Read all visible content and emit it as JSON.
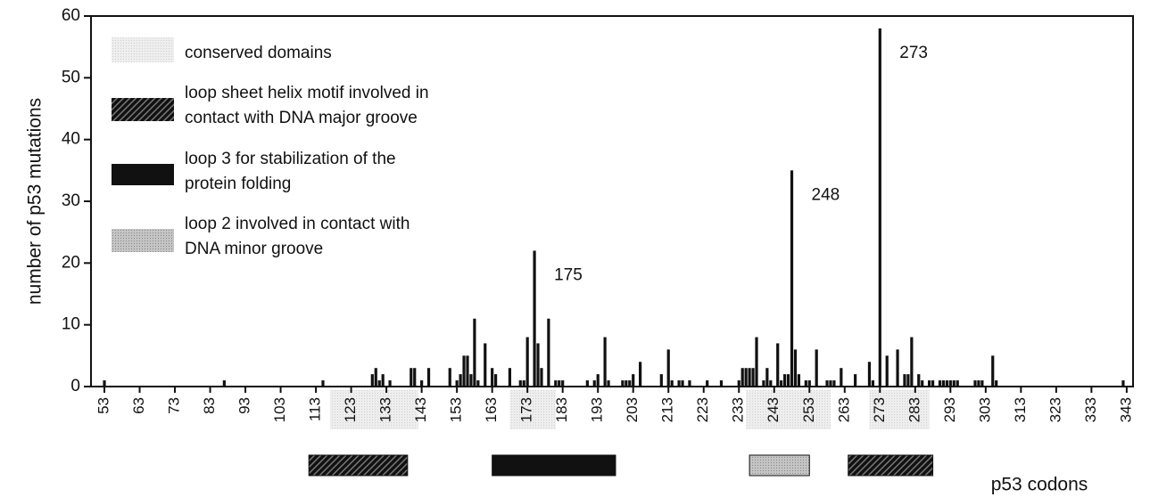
{
  "chart_data": {
    "type": "bar",
    "ylabel": "number of p53 mutations",
    "xlabel": "p53 codons",
    "color": "#111111",
    "x": [
      53,
      87,
      115,
      129,
      130,
      131,
      132,
      134,
      140,
      141,
      143,
      145,
      151,
      153,
      154,
      155,
      156,
      157,
      158,
      159,
      161,
      163,
      164,
      168,
      171,
      172,
      173,
      175,
      176,
      177,
      179,
      181,
      182,
      183,
      190,
      192,
      193,
      195,
      196,
      200,
      201,
      202,
      203,
      205,
      211,
      213,
      214,
      216,
      217,
      219,
      224,
      228,
      233,
      234,
      235,
      236,
      237,
      238,
      240,
      241,
      242,
      244,
      245,
      246,
      247,
      248,
      249,
      250,
      252,
      253,
      255,
      258,
      259,
      260,
      262,
      266,
      270,
      271,
      273,
      275,
      278,
      280,
      281,
      282,
      284,
      285,
      287,
      288,
      290,
      291,
      292,
      293,
      294,
      295,
      300,
      301,
      302,
      305,
      306,
      342
    ],
    "values": [
      1,
      1,
      1,
      2,
      3,
      1,
      2,
      1,
      3,
      3,
      1,
      3,
      3,
      1,
      2,
      5,
      5,
      2,
      11,
      1,
      7,
      3,
      2,
      3,
      1,
      1,
      8,
      22,
      7,
      3,
      11,
      1,
      1,
      1,
      1,
      1,
      2,
      8,
      1,
      1,
      1,
      1,
      2,
      4,
      2,
      6,
      1,
      1,
      1,
      1,
      1,
      1,
      1,
      3,
      3,
      3,
      3,
      8,
      1,
      3,
      1,
      7,
      1,
      2,
      2,
      35,
      6,
      2,
      1,
      1,
      6,
      1,
      1,
      1,
      3,
      2,
      4,
      1,
      58,
      5,
      6,
      2,
      2,
      8,
      2,
      1,
      1,
      1,
      1,
      1,
      1,
      1,
      1,
      1,
      1,
      1,
      1,
      5,
      1,
      1
    ],
    "xlim": [
      49.2,
      344.8
    ],
    "xticks": [
      53,
      63,
      73,
      83,
      93,
      103,
      113,
      123,
      133,
      143,
      153,
      163,
      173,
      183,
      193,
      203,
      213,
      223,
      233,
      243,
      253,
      263,
      273,
      283,
      293,
      303,
      313,
      323,
      333,
      343
    ],
    "ylim": [
      0,
      60
    ],
    "yticks": [
      0,
      10,
      20,
      30,
      40,
      50,
      60
    ],
    "annotations": [
      {
        "x": 175
      },
      {
        "x": 248
      },
      {
        "x": 273
      }
    ],
    "legend": [
      {
        "name": [
          "conserved domains"
        ],
        "pattern": "dots-light",
        "color": "#e4e4e4",
        "ranges": [
          [
            117,
            142
          ],
          [
            168,
            181
          ],
          [
            235,
            259
          ],
          [
            270,
            287
          ]
        ]
      },
      {
        "name": [
          "loop sheet helix motif involved in",
          "contact with DNA major groove"
        ],
        "pattern": "hatch",
        "color": "#2a2a2a",
        "ranges": [
          [
            111,
            139
          ],
          [
            264,
            288
          ]
        ]
      },
      {
        "name": [
          "loop 3 for stabilization of the",
          "protein folding"
        ],
        "pattern": "solid",
        "color": "#111111",
        "ranges": [
          [
            163,
            198
          ]
        ]
      },
      {
        "name": [
          "loop 2 involved in contact with",
          "DNA minor groove"
        ],
        "pattern": "dots-dark",
        "color": "#b8b8b8",
        "ranges": [
          [
            236,
            253
          ]
        ]
      }
    ]
  }
}
